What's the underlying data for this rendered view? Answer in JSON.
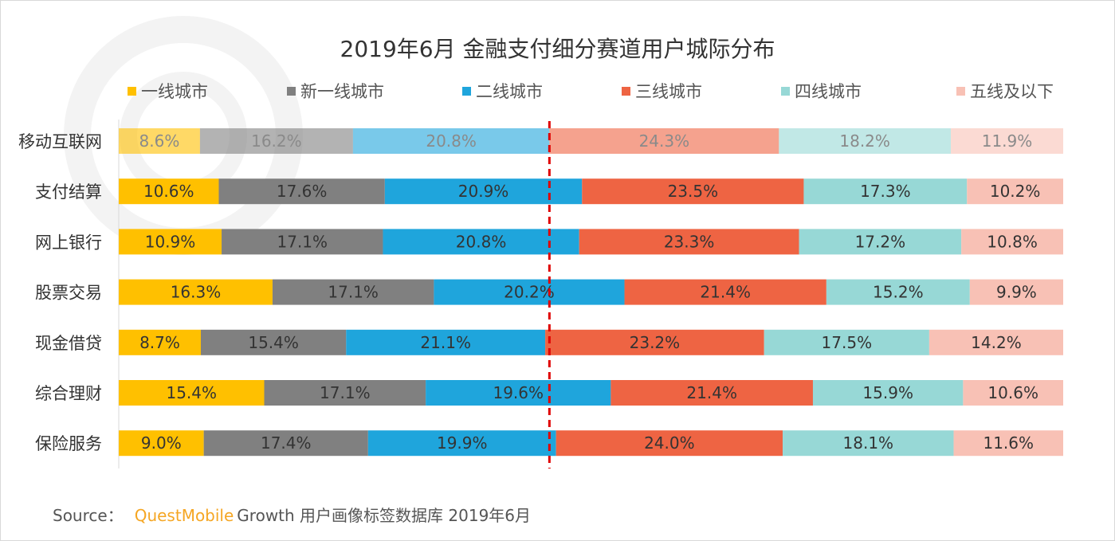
{
  "title": "2019年6月 金融支付细分赛道用户城际分布",
  "legend": [
    {
      "label": "一线城市",
      "color": "#FFC000"
    },
    {
      "label": "新一线城市",
      "color": "#808080"
    },
    {
      "label": "二线城市",
      "color": "#1FA5DC"
    },
    {
      "label": "三线城市",
      "color": "#EE6443"
    },
    {
      "label": "四线城市",
      "color": "#97D8D6"
    },
    {
      "label": "五线及以下",
      "color": "#F8C1B5"
    }
  ],
  "source": {
    "prefix": "Source：",
    "brand": "QuestMobile",
    "rest": "Growth 用户画像标签数据库 2019年6月"
  },
  "chart_data": {
    "type": "bar",
    "orientation": "horizontal",
    "stacked": true,
    "percent_stacked": true,
    "title": "2019年6月 金融支付细分赛道用户城际分布",
    "categories": [
      "移动互联网",
      "支付结算",
      "网上银行",
      "股票交易",
      "现金借贷",
      "综合理财",
      "保险服务"
    ],
    "series": [
      {
        "name": "一线城市",
        "values": [
          8.6,
          10.6,
          10.9,
          16.3,
          8.7,
          15.4,
          9.0
        ]
      },
      {
        "name": "新一线城市",
        "values": [
          16.2,
          17.6,
          17.1,
          17.1,
          15.4,
          17.1,
          17.4
        ]
      },
      {
        "name": "二线城市",
        "values": [
          20.8,
          20.9,
          20.8,
          20.2,
          21.1,
          19.6,
          19.9
        ]
      },
      {
        "name": "三线城市",
        "values": [
          24.3,
          23.5,
          23.3,
          21.4,
          23.2,
          21.4,
          24.0
        ]
      },
      {
        "name": "四线城市",
        "values": [
          18.2,
          17.3,
          17.2,
          15.2,
          17.5,
          15.9,
          18.1
        ]
      },
      {
        "name": "五线及以下",
        "values": [
          11.9,
          10.2,
          10.8,
          9.9,
          14.2,
          10.6,
          11.6
        ]
      }
    ],
    "highlighted_category": "移动互联网",
    "reference_line_value": 45.6,
    "reference_line_color": "#E00000",
    "reference_line_style": "dashed",
    "legend_position": "top",
    "grid": false
  }
}
